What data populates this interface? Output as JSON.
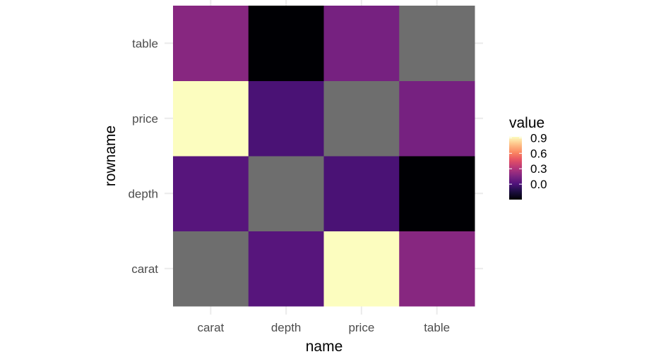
{
  "chart_data": {
    "type": "heatmap",
    "x_categories": [
      "carat",
      "depth",
      "price",
      "table"
    ],
    "y_categories": [
      "carat",
      "depth",
      "price",
      "table"
    ],
    "xlabel": "name",
    "ylabel": "rowname",
    "cells": [
      {
        "x": "carat",
        "y": "carat",
        "value": null
      },
      {
        "x": "depth",
        "y": "carat",
        "value": 0.03
      },
      {
        "x": "price",
        "y": "carat",
        "value": 0.92
      },
      {
        "x": "table",
        "y": "carat",
        "value": 0.18
      },
      {
        "x": "carat",
        "y": "depth",
        "value": 0.03
      },
      {
        "x": "depth",
        "y": "depth",
        "value": null
      },
      {
        "x": "price",
        "y": "depth",
        "value": -0.01
      },
      {
        "x": "table",
        "y": "depth",
        "value": -0.3
      },
      {
        "x": "carat",
        "y": "price",
        "value": 0.92
      },
      {
        "x": "depth",
        "y": "price",
        "value": -0.01
      },
      {
        "x": "price",
        "y": "price",
        "value": null
      },
      {
        "x": "table",
        "y": "price",
        "value": 0.13
      },
      {
        "x": "carat",
        "y": "table",
        "value": 0.18
      },
      {
        "x": "depth",
        "y": "table",
        "value": -0.3
      },
      {
        "x": "price",
        "y": "table",
        "value": 0.13
      },
      {
        "x": "table",
        "y": "table",
        "value": null
      }
    ],
    "na_color": "#6e6e6e",
    "colormap": "magma",
    "legend": {
      "title": "value",
      "ticks": [
        0.9,
        0.6,
        0.3,
        0.0
      ],
      "tick_labels": [
        "0.9",
        "0.6",
        "0.3",
        "0.0"
      ],
      "range": [
        -0.3,
        0.92
      ],
      "placement": "right"
    }
  }
}
